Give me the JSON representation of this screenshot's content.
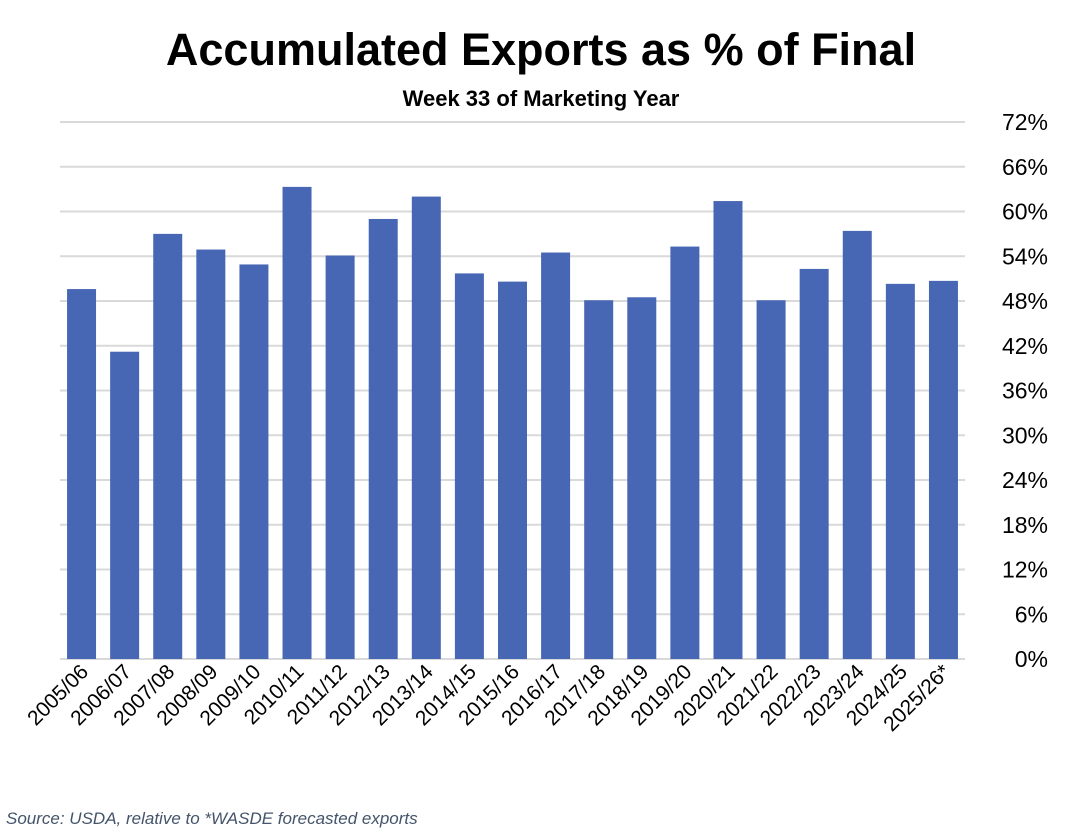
{
  "chart_data": {
    "type": "bar",
    "title": "Accumulated Exports as % of Final",
    "subtitle": "Week 33 of Marketing Year",
    "source": "Source: USDA, relative to *WASDE forecasted exports",
    "categories": [
      "2005/06",
      "2006/07",
      "2007/08",
      "2008/09",
      "2009/10",
      "2010/11",
      "2011/12",
      "2012/13",
      "2013/14",
      "2014/15",
      "2015/16",
      "2016/17",
      "2017/18",
      "2018/19",
      "2019/20",
      "2020/21",
      "2021/22",
      "2022/23",
      "2023/24",
      "2024/25",
      "2025/26*"
    ],
    "values": [
      49.6,
      41.2,
      57.0,
      54.9,
      52.9,
      63.3,
      54.1,
      59.0,
      62.0,
      51.7,
      50.6,
      54.5,
      48.1,
      48.5,
      55.3,
      61.4,
      48.1,
      52.3,
      57.4,
      50.3,
      50.7
    ],
    "ylim": [
      0,
      72
    ],
    "yticks": [
      0,
      6,
      12,
      18,
      24,
      30,
      36,
      42,
      48,
      54,
      60,
      66,
      72
    ],
    "ytick_labels": [
      "0%",
      "6%",
      "12%",
      "18%",
      "24%",
      "30%",
      "36%",
      "42%",
      "48%",
      "54%",
      "60%",
      "66%",
      "72%"
    ],
    "yaxis_side": "right",
    "grid": true,
    "bar_color": "#4767b5",
    "grid_color": "#d9d9d9"
  }
}
